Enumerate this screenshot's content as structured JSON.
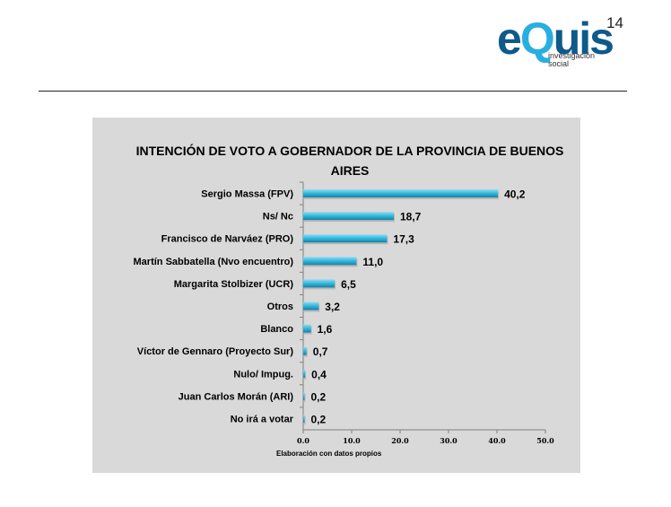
{
  "page_number": "14",
  "logo": {
    "word_e": "e",
    "word_q": "Q",
    "word_uis": "uis",
    "line1": "investigación",
    "line2": "social",
    "color_dark": "#0e5a8a",
    "color_light": "#29aee0"
  },
  "footnote": "Elaboración con datos propios",
  "chart_data": {
    "type": "bar",
    "orientation": "horizontal",
    "title": "INTENCIÓN DE VOTO A GOBERNADOR DE LA PROVINCIA DE BUENOS AIRES",
    "categories": [
      "Sergio Massa  (FPV)",
      "Ns/ Nc",
      "Francisco de Narváez (PRO)",
      "Martín Sabbatella (Nvo encuentro)",
      "Margarita Stolbizer (UCR)",
      "Otros",
      "Blanco",
      "Víctor de Gennaro (Proyecto Sur)",
      "Nulo/ Impug.",
      "Juan Carlos Morán (ARI)",
      "No irá a votar"
    ],
    "values": [
      40.2,
      18.7,
      17.3,
      11.0,
      6.5,
      3.2,
      1.6,
      0.7,
      0.4,
      0.2,
      0.2
    ],
    "value_labels": [
      "40,2",
      "18,7",
      "17,3",
      "11,0",
      "6,5",
      "3,2",
      "1,6",
      "0,7",
      "0,4",
      "0,2",
      "0,2"
    ],
    "xlim": [
      0,
      50
    ],
    "x_ticks": [
      "0.0",
      "10.0",
      "20.0",
      "30.0",
      "40.0",
      "50.0"
    ],
    "bar_color": "#31b7dc",
    "grid": false,
    "legend": "none"
  }
}
